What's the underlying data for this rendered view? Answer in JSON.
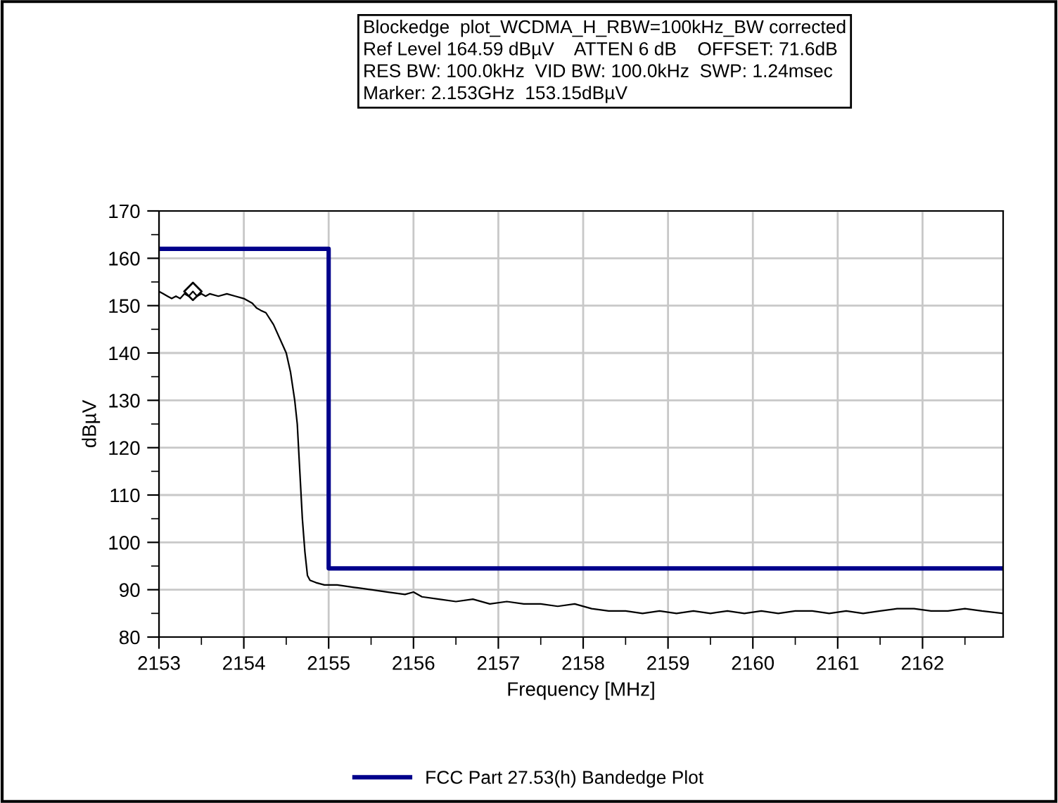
{
  "chart_data": {
    "type": "line",
    "annotations": [
      "Blockedge  plot_WCDMA_H_RBW=100kHz_BW corrected",
      "Ref Level 164.59 dBµV    ATTEN 6 dB    OFFSET: 71.6dB",
      "RES BW: 100.0kHz  VID BW: 100.0kHz  SWP: 1.24msec",
      "Marker: 2.153GHz  153.15dBµV"
    ],
    "xlabel": "Frequency [MHz]",
    "ylabel": "dBµV",
    "xlim": [
      2153,
      2162.95
    ],
    "xticks": [
      2153,
      2154,
      2155,
      2156,
      2157,
      2158,
      2159,
      2160,
      2161,
      2162
    ],
    "ylim": [
      80,
      170
    ],
    "yticks": [
      80,
      90,
      100,
      110,
      120,
      130,
      140,
      150,
      160,
      170
    ],
    "grid": true,
    "legend": "bottom",
    "series": [
      {
        "type": "step",
        "name": "FCC Part 27.53(h) Bandedge Plot",
        "color": "#00008b",
        "x": [
          2153,
          2155,
          2162.95
        ],
        "values": [
          162,
          94.5,
          94.5
        ]
      },
      {
        "color": "#000000",
        "x": [
          2153,
          2153.05,
          2153.1,
          2153.15,
          2153.2,
          2153.25,
          2153.3,
          2153.35,
          2153.4,
          2153.45,
          2153.5,
          2153.55,
          2153.6,
          2153.7,
          2153.8,
          2153.9,
          2154,
          2154.1,
          2154.15,
          2154.2,
          2154.26,
          2154.35,
          2154.45,
          2154.5,
          2154.55,
          2154.6,
          2154.63,
          2154.66,
          2154.69,
          2154.72,
          2154.75,
          2154.78,
          2154.85,
          2154.95,
          2155.1,
          2155.3,
          2155.5,
          2155.7,
          2155.9,
          2156.0,
          2156.1,
          2156.3,
          2156.5,
          2156.7,
          2156.9,
          2157.1,
          2157.3,
          2157.5,
          2157.7,
          2157.9,
          2158.1,
          2158.3,
          2158.5,
          2158.7,
          2158.9,
          2159.1,
          2159.3,
          2159.5,
          2159.7,
          2159.9,
          2160.1,
          2160.3,
          2160.5,
          2160.7,
          2160.9,
          2161.1,
          2161.3,
          2161.5,
          2161.7,
          2161.9,
          2162.1,
          2162.3,
          2162.5,
          2162.7,
          2162.95
        ],
        "values": [
          153,
          152.5,
          152,
          151.5,
          152,
          151.5,
          152.5,
          152,
          153,
          152,
          152.5,
          152,
          152.5,
          152,
          152.5,
          152,
          151.5,
          150.5,
          149.5,
          149,
          148.5,
          146,
          142,
          140,
          136,
          130,
          125,
          115,
          105,
          98,
          93,
          92,
          91.5,
          91,
          91,
          90.5,
          90,
          89.5,
          89,
          89.5,
          88.5,
          88,
          87.5,
          88,
          87,
          87.5,
          87,
          87,
          86.5,
          87,
          86,
          85.5,
          85.5,
          85,
          85.5,
          85,
          85.5,
          85,
          85.5,
          85,
          85.5,
          85,
          85.5,
          85.5,
          85,
          85.5,
          85,
          85.5,
          86,
          86,
          85.5,
          85.5,
          86,
          85.5,
          85
        ]
      },
      {
        "type": "scatter",
        "color": "#000000",
        "marker": "diamond",
        "x": [
          2153.4
        ],
        "values": [
          153
        ]
      }
    ]
  }
}
